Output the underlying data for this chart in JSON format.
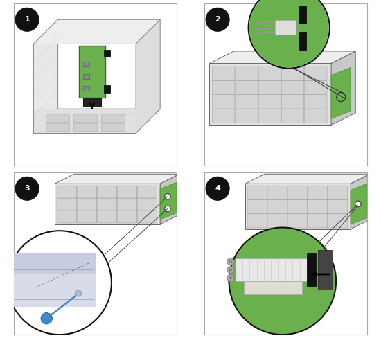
{
  "bg_color": "#ffffff",
  "panel_border": "#aaaaaa",
  "green": "#6ab04c",
  "green2": "#5aa03c",
  "dark": "#222222",
  "gray1": "#f0f0f0",
  "gray2": "#e0e0e0",
  "gray3": "#cccccc",
  "gray4": "#bbbbbb",
  "gray5": "#aaaaaa",
  "gray6": "#888888",
  "gray7": "#666666",
  "bay_face": "#d4d4d4",
  "bay_edge": "#999999",
  "server_top": "#eeeeee",
  "server_front": "#e2e2e2",
  "server_side": "#c8c8c8",
  "blue_screwdriver": "#4488cc",
  "step_bg": "#111111",
  "step_fg": "#ffffff",
  "zoom_border": "#111111",
  "line_connect": "#333333"
}
